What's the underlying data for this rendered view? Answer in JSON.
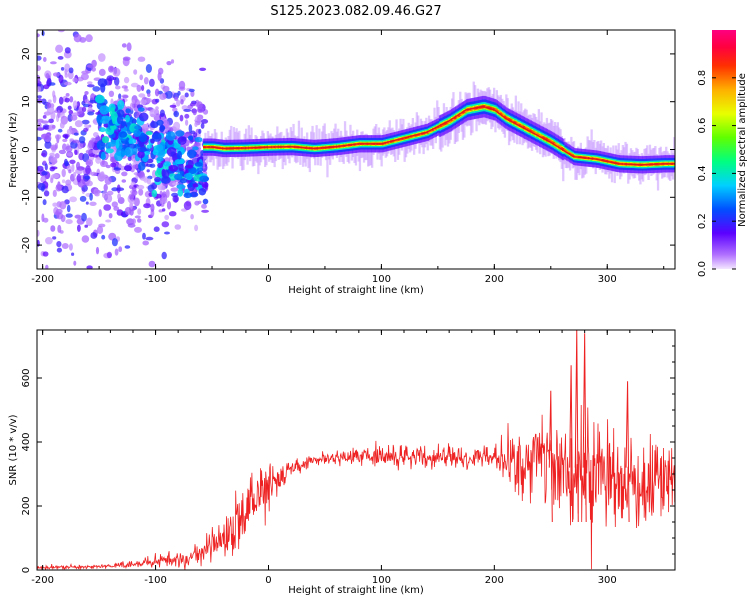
{
  "title": "S125.2023.082.09.46.G27",
  "colors": {
    "snr_line": "#ee2222",
    "freq_line": "#e01818",
    "axis": "#000000"
  },
  "chart_data": [
    {
      "type": "heatmap",
      "xlabel": "Height of straight line (km)",
      "ylabel": "Frequency (Hz)",
      "xlim": [
        -205,
        360
      ],
      "ylim": [
        -25,
        25
      ],
      "xticks": [
        -200,
        -100,
        0,
        100,
        200,
        300
      ],
      "xtick_labels": [
        "-200",
        "-100",
        "0",
        "100",
        "200",
        "300"
      ],
      "yticks": [
        -20,
        -10,
        0,
        10,
        20
      ],
      "ytick_labels": [
        "-20",
        "-10",
        "0",
        "10",
        "20"
      ],
      "colormap": "rainbow (violet -> blue -> cyan -> green -> yellow -> orange -> red -> magenta)",
      "colorbar": {
        "label": "Normalized spectral amplitude",
        "range": [
          0.0,
          1.0
        ],
        "ticks": [
          0.0,
          0.2,
          0.4,
          0.6,
          0.8
        ],
        "tick_labels": [
          "0.0",
          "0.2",
          "0.4",
          "0.6",
          "0.8"
        ]
      },
      "ridge": {
        "x": [
          -60,
          -50,
          -40,
          -20,
          0,
          20,
          40,
          60,
          80,
          100,
          120,
          140,
          160,
          175,
          190,
          200,
          210,
          230,
          250,
          270,
          290,
          310,
          330,
          350,
          360
        ],
        "y": [
          0.5,
          0.5,
          0.2,
          0.3,
          0.5,
          0.6,
          0.2,
          0.6,
          1.2,
          1.2,
          2.4,
          3.6,
          6.0,
          8.3,
          9.0,
          8.3,
          6.5,
          4.0,
          1.5,
          -1.5,
          -2.0,
          -3.0,
          -3.2,
          -3.0,
          -3.0
        ]
      },
      "scatter_region": {
        "x_range": [
          -205,
          -55
        ],
        "y_range": [
          -25,
          25
        ]
      }
    },
    {
      "type": "line",
      "xlabel": "Height of straight line (km)",
      "ylabel": "SNR (10 * v/v)",
      "xlim": [
        -205,
        360
      ],
      "ylim": [
        0,
        750
      ],
      "xticks": [
        -200,
        -100,
        0,
        100,
        200,
        300
      ],
      "xtick_labels": [
        "-200",
        "-100",
        "0",
        "100",
        "200",
        "300"
      ],
      "yticks": [
        0,
        200,
        400,
        600
      ],
      "ytick_labels": [
        "0",
        "200",
        "400",
        "600"
      ],
      "envelope": {
        "x": [
          -205,
          -150,
          -120,
          -100,
          -80,
          -60,
          -40,
          -20,
          0,
          20,
          40,
          60,
          100,
          150,
          200,
          220,
          240,
          260,
          280,
          300,
          320,
          330,
          340,
          360
        ],
        "mean": [
          8,
          10,
          18,
          28,
          35,
          45,
          90,
          190,
          260,
          320,
          345,
          350,
          355,
          355,
          350,
          340,
          330,
          320,
          300,
          300,
          310,
          200,
          280,
          320
        ],
        "spread": [
          5,
          6,
          10,
          15,
          25,
          35,
          60,
          90,
          70,
          25,
          18,
          20,
          30,
          30,
          40,
          90,
          120,
          150,
          170,
          150,
          140,
          120,
          100,
          100
        ]
      },
      "spikes": [
        {
          "x": 273,
          "y": 750
        },
        {
          "x": 280,
          "y": 740
        },
        {
          "x": 268,
          "y": 640
        },
        {
          "x": 318,
          "y": 590
        },
        {
          "x": 250,
          "y": 560
        }
      ]
    }
  ]
}
